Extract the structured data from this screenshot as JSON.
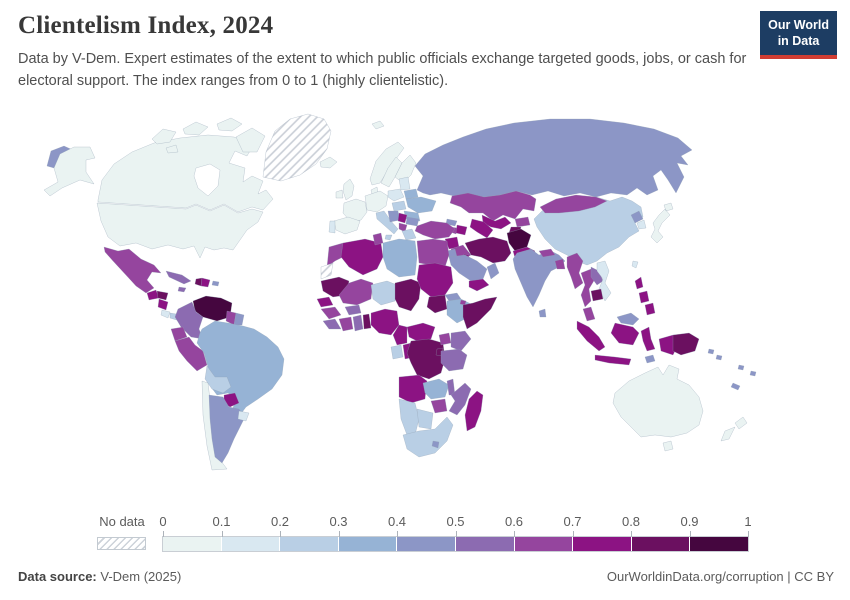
{
  "header": {
    "title": "Clientelism Index, 2024",
    "subtitle": "Data by V-Dem. Expert estimates of the extent to which public officials exchange targeted goods, jobs, or cash for electoral support. The index ranges from 0 to 1 (highly clientelistic).",
    "logo_line1": "Our World",
    "logo_line2": "in Data",
    "logo_colors": {
      "background": "#1d3d63",
      "underline": "#d13d33"
    }
  },
  "legend": {
    "no_data_label": "No data",
    "ticks": [
      "0",
      "0.1",
      "0.2",
      "0.3",
      "0.4",
      "0.5",
      "0.6",
      "0.7",
      "0.8",
      "0.9",
      "1"
    ],
    "bins": [
      {
        "range": "0–0.1",
        "color": "#eaf3f2"
      },
      {
        "range": "0.1–0.2",
        "color": "#d9e8f1"
      },
      {
        "range": "0.2–0.3",
        "color": "#b9cfe5"
      },
      {
        "range": "0.3–0.4",
        "color": "#96b3d5"
      },
      {
        "range": "0.4–0.5",
        "color": "#8c96c6"
      },
      {
        "range": "0.5–0.6",
        "color": "#8c6bb1"
      },
      {
        "range": "0.6–0.7",
        "color": "#95459e"
      },
      {
        "range": "0.7–0.8",
        "color": "#8c1383"
      },
      {
        "range": "0.8–0.9",
        "color": "#6b1060"
      },
      {
        "range": "0.9–1",
        "color": "#45063f"
      }
    ]
  },
  "footer": {
    "source_label": "Data source:",
    "source_value": " V-Dem (2025)",
    "right_text": "OurWorldinData.org/corruption | CC BY"
  },
  "chart_data": {
    "type": "choropleth_map",
    "title": "Clientelism Index, 2024",
    "scale": {
      "min": 0,
      "max": 1,
      "step": 0.1,
      "palette": "blue-purple sequential",
      "no_data": "hatched"
    },
    "regions": {
      "usa": {
        "name": "United States",
        "value": "0–0.1",
        "color": "#eaf3f2"
      },
      "alaska": {
        "name": "Alaska (United States)",
        "value": "0–0.1",
        "color": "#eaf3f2"
      },
      "canada": {
        "name": "Canada",
        "value": "0–0.1",
        "color": "#eaf3f2"
      },
      "arctic": {
        "name": "Canadian Arctic islands",
        "value": "0–0.1",
        "color": "#eaf3f2"
      },
      "greenland": {
        "name": "Greenland",
        "value": "No data",
        "color": "hatch"
      },
      "chukotka": {
        "name": "Russia (far east)",
        "value": "0.4–0.5",
        "color": "#8c96c6"
      },
      "mexico": {
        "name": "Mexico",
        "value": "0.6–0.7",
        "color": "#95459e"
      },
      "guatemala": {
        "name": "Guatemala",
        "value": "0.7–0.8",
        "color": "#8c1383"
      },
      "honduras": {
        "name": "Honduras",
        "value": "0.8–0.9",
        "color": "#6b1060"
      },
      "nicaragua": {
        "name": "Nicaragua",
        "value": "0.7–0.8",
        "color": "#8c1383"
      },
      "costarica": {
        "name": "Costa Rica",
        "value": "0.1–0.2",
        "color": "#d9e8f1"
      },
      "panama": {
        "name": "Panama",
        "value": "0.2–0.3",
        "color": "#b9cfe5"
      },
      "cuba": {
        "name": "Cuba",
        "value": "0.5–0.6",
        "color": "#8c6bb1"
      },
      "jamaica": {
        "name": "Jamaica",
        "value": "0.5–0.6",
        "color": "#8c6bb1"
      },
      "haiti": {
        "name": "Haiti",
        "value": "0.8–0.9",
        "color": "#6b1060"
      },
      "domrep": {
        "name": "Dominican Republic",
        "value": "0.7–0.8",
        "color": "#8c1383"
      },
      "puertorico": {
        "name": "Puerto Rico",
        "value": "0.4–0.5",
        "color": "#8c96c6"
      },
      "venezuela": {
        "name": "Venezuela",
        "value": "0.9–1",
        "color": "#45063f"
      },
      "colombia": {
        "name": "Colombia",
        "value": "0.5–0.6",
        "color": "#8c6bb1"
      },
      "guyana": {
        "name": "Guyana",
        "value": "0.6–0.7",
        "color": "#95459e"
      },
      "suriname": {
        "name": "Suriname",
        "value": "0.4–0.5",
        "color": "#8c96c6"
      },
      "ecuador": {
        "name": "Ecuador",
        "value": "0.6–0.7",
        "color": "#95459e"
      },
      "peru": {
        "name": "Peru",
        "value": "0.6–0.7",
        "color": "#95459e"
      },
      "brazil": {
        "name": "Brazil",
        "value": "0.3–0.4",
        "color": "#96b3d5"
      },
      "bolivia": {
        "name": "Bolivia",
        "value": "0.2–0.3",
        "color": "#b9cfe5"
      },
      "paraguay": {
        "name": "Paraguay",
        "value": "0.7–0.8",
        "color": "#8c1383"
      },
      "chile": {
        "name": "Chile",
        "value": "0–0.1",
        "color": "#eaf3f2"
      },
      "argentina": {
        "name": "Argentina",
        "value": "0.4–0.5",
        "color": "#8c96c6"
      },
      "uruguay": {
        "name": "Uruguay",
        "value": "0.1–0.2",
        "color": "#d9e8f1"
      },
      "iceland": {
        "name": "Iceland",
        "value": "0–0.1",
        "color": "#eaf3f2"
      },
      "uk": {
        "name": "United Kingdom",
        "value": "0–0.1",
        "color": "#eaf3f2"
      },
      "ireland": {
        "name": "Ireland",
        "value": "0–0.1",
        "color": "#eaf3f2"
      },
      "norway": {
        "name": "Norway",
        "value": "0–0.1",
        "color": "#eaf3f2"
      },
      "sweden": {
        "name": "Sweden",
        "value": "0–0.1",
        "color": "#eaf3f2"
      },
      "finland": {
        "name": "Finland",
        "value": "0–0.1",
        "color": "#eaf3f2"
      },
      "denmark": {
        "name": "Denmark",
        "value": "0–0.1",
        "color": "#eaf3f2"
      },
      "germany": {
        "name": "Germany / Central Europe",
        "value": "0–0.1",
        "color": "#eaf3f2"
      },
      "france": {
        "name": "France",
        "value": "0–0.1",
        "color": "#eaf3f2"
      },
      "spain": {
        "name": "Spain",
        "value": "0–0.1",
        "color": "#eaf3f2"
      },
      "portugal": {
        "name": "Portugal",
        "value": "0.1–0.2",
        "color": "#d9e8f1"
      },
      "italy": {
        "name": "Italy",
        "value": "0.2–0.3",
        "color": "#b9cfe5"
      },
      "poland": {
        "name": "Poland",
        "value": "0.1–0.2",
        "color": "#d9e8f1"
      },
      "baltics": {
        "name": "Baltic states",
        "value": "0.1–0.2",
        "color": "#d9e8f1"
      },
      "belarus": {
        "name": "Belarus",
        "value": "0.3–0.4",
        "color": "#96b3d5"
      },
      "ukraine": {
        "name": "Ukraine",
        "value": "0.3–0.4",
        "color": "#96b3d5"
      },
      "hungary": {
        "name": "Hungary / Slovakia",
        "value": "0.2–0.3",
        "color": "#b9cfe5"
      },
      "romania": {
        "name": "Romania",
        "value": "0.3–0.4",
        "color": "#96b3d5"
      },
      "westbalkans": {
        "name": "Croatia / Bosnia",
        "value": "0.4–0.5",
        "color": "#8c96c6"
      },
      "serbia": {
        "name": "Serbia",
        "value": "0.7–0.8",
        "color": "#8c1383"
      },
      "bulgaria": {
        "name": "Bulgaria",
        "value": "0.4–0.5",
        "color": "#8c96c6"
      },
      "albmac": {
        "name": "Albania / North Macedonia",
        "value": "0.6–0.7",
        "color": "#95459e"
      },
      "greece": {
        "name": "Greece",
        "value": "0.2–0.3",
        "color": "#b9cfe5"
      },
      "svalbard": {
        "name": "Svalbard",
        "value": "0–0.1",
        "color": "#eaf3f2"
      },
      "russia": {
        "name": "Russia",
        "value": "0.4–0.5",
        "color": "#8c96c6"
      },
      "kazakhstan": {
        "name": "Kazakhstan",
        "value": "0.6–0.7",
        "color": "#95459e"
      },
      "uzbekistan": {
        "name": "Uzbekistan",
        "value": "0.7–0.8",
        "color": "#8c1383"
      },
      "turkmenistan": {
        "name": "Turkmenistan",
        "value": "0.7–0.8",
        "color": "#8c1383"
      },
      "kyrgyzstan": {
        "name": "Kyrgyzstan",
        "value": "0.6–0.7",
        "color": "#95459e"
      },
      "tajikistan": {
        "name": "Tajikistan",
        "value": "0.8–0.9",
        "color": "#6b1060"
      },
      "georgia": {
        "name": "Georgia",
        "value": "0.4–0.5",
        "color": "#8c96c6"
      },
      "armenia": {
        "name": "Armenia",
        "value": "0.6–0.7",
        "color": "#95459e"
      },
      "azerbaijan": {
        "name": "Azerbaijan",
        "value": "0.7–0.8",
        "color": "#8c1383"
      },
      "turkey": {
        "name": "Turkey",
        "value": "0.6–0.7",
        "color": "#95459e"
      },
      "syria": {
        "name": "Syria",
        "value": "0.7–0.8",
        "color": "#8c1383"
      },
      "iraq": {
        "name": "Iraq",
        "value": "0.6–0.7",
        "color": "#95459e"
      },
      "iran": {
        "name": "Iran",
        "value": "0.8–0.9",
        "color": "#6b1060"
      },
      "afghanistan": {
        "name": "Afghanistan",
        "value": "0.9–1",
        "color": "#45063f"
      },
      "pakistan": {
        "name": "Pakistan",
        "value": "0.7–0.8",
        "color": "#8c1383"
      },
      "jordan": {
        "name": "Jordan",
        "value": "0.4–0.5",
        "color": "#8c96c6"
      },
      "israel": {
        "name": "Israel",
        "value": "0.1–0.2",
        "color": "#d9e8f1"
      },
      "saudi": {
        "name": "Saudi Arabia",
        "value": "0.4–0.5",
        "color": "#8c96c6"
      },
      "kuwait": {
        "name": "Kuwait",
        "value": "0.7–0.8",
        "color": "#8c1383"
      },
      "yemen": {
        "name": "Yemen",
        "value": "0.7–0.8",
        "color": "#8c1383"
      },
      "oman": {
        "name": "Oman",
        "value": "0.4–0.5",
        "color": "#8c96c6"
      },
      "morocco": {
        "name": "Morocco",
        "value": "0.6–0.7",
        "color": "#95459e"
      },
      "wsahara": {
        "name": "Western Sahara",
        "value": "No data",
        "color": "hatch"
      },
      "algeria": {
        "name": "Algeria",
        "value": "0.7–0.8",
        "color": "#8c1383"
      },
      "tunisia": {
        "name": "Tunisia",
        "value": "0.6–0.7",
        "color": "#95459e"
      },
      "libya": {
        "name": "Libya",
        "value": "0.3–0.4",
        "color": "#96b3d5"
      },
      "egypt": {
        "name": "Egypt",
        "value": "0.6–0.7",
        "color": "#95459e"
      },
      "mauritania": {
        "name": "Mauritania",
        "value": "0.8–0.9",
        "color": "#6b1060"
      },
      "mali": {
        "name": "Mali",
        "value": "0.6–0.7",
        "color": "#95459e"
      },
      "niger": {
        "name": "Niger",
        "value": "0.2–0.3",
        "color": "#b9cfe5"
      },
      "chad": {
        "name": "Chad",
        "value": "0.8–0.9",
        "color": "#6b1060"
      },
      "sudan": {
        "name": "Sudan",
        "value": "0.7–0.8",
        "color": "#8c1383"
      },
      "southsudan": {
        "name": "South Sudan",
        "value": "0.8–0.9",
        "color": "#6b1060"
      },
      "eritrea": {
        "name": "Eritrea",
        "value": "0.4–0.5",
        "color": "#8c96c6"
      },
      "ethiopia": {
        "name": "Ethiopia",
        "value": "0.3–0.4",
        "color": "#96b3d5"
      },
      "djibouti": {
        "name": "Djibouti",
        "value": "0.6–0.7",
        "color": "#95459e"
      },
      "somalia": {
        "name": "Somalia",
        "value": "0.8–0.9",
        "color": "#6b1060"
      },
      "senegal": {
        "name": "Senegal",
        "value": "0.7–0.8",
        "color": "#8c1383"
      },
      "guinea": {
        "name": "Guinea",
        "value": "0.6–0.7",
        "color": "#95459e"
      },
      "sierraliberia": {
        "name": "Sierra Leone / Liberia",
        "value": "0.5–0.6",
        "color": "#8c6bb1"
      },
      "ivorycoast": {
        "name": "Côte d'Ivoire",
        "value": "0.6–0.7",
        "color": "#95459e"
      },
      "burkina": {
        "name": "Burkina Faso",
        "value": "0.5–0.6",
        "color": "#8c6bb1"
      },
      "ghana": {
        "name": "Ghana",
        "value": "0.5–0.6",
        "color": "#8c6bb1"
      },
      "togobenin": {
        "name": "Togo / Benin",
        "value": "0.8–0.9",
        "color": "#6b1060"
      },
      "nigeria": {
        "name": "Nigeria",
        "value": "0.7–0.8",
        "color": "#8c1383"
      },
      "cameroon": {
        "name": "Cameroon",
        "value": "0.7–0.8",
        "color": "#8c1383"
      },
      "car": {
        "name": "Central African Republic",
        "value": "0.7–0.8",
        "color": "#8c1383"
      },
      "gabon": {
        "name": "Gabon / Eq. Guinea",
        "value": "0.2–0.3",
        "color": "#b9cfe5"
      },
      "congo": {
        "name": "Congo",
        "value": "0.7–0.8",
        "color": "#8c1383"
      },
      "drc": {
        "name": "Democratic Republic of Congo",
        "value": "0.8–0.9",
        "color": "#6b1060"
      },
      "uganda": {
        "name": "Uganda",
        "value": "0.6–0.7",
        "color": "#95459e"
      },
      "kenya": {
        "name": "Kenya",
        "value": "0.5–0.6",
        "color": "#8c6bb1"
      },
      "rwandaburundi": {
        "name": "Rwanda / Burundi",
        "value": "0.8–0.9",
        "color": "#6b1060"
      },
      "tanzania": {
        "name": "Tanzania",
        "value": "0.5–0.6",
        "color": "#8c6bb1"
      },
      "angola": {
        "name": "Angola",
        "value": "0.7–0.8",
        "color": "#8c1383"
      },
      "zambia": {
        "name": "Zambia",
        "value": "0.3–0.4",
        "color": "#96b3d5"
      },
      "malawi": {
        "name": "Malawi",
        "value": "0.5–0.6",
        "color": "#8c6bb1"
      },
      "mozambique": {
        "name": "Mozambique",
        "value": "0.5–0.6",
        "color": "#8c6bb1"
      },
      "zimbabwe": {
        "name": "Zimbabwe",
        "value": "0.6–0.7",
        "color": "#95459e"
      },
      "namibia": {
        "name": "Namibia",
        "value": "0.2–0.3",
        "color": "#b9cfe5"
      },
      "botswana": {
        "name": "Botswana",
        "value": "0.2–0.3",
        "color": "#b9cfe5"
      },
      "southafrica": {
        "name": "South Africa",
        "value": "0.2–0.3",
        "color": "#b9cfe5"
      },
      "lesotho": {
        "name": "Lesotho",
        "value": "0.4–0.5",
        "color": "#8c96c6"
      },
      "madagascar": {
        "name": "Madagascar",
        "value": "0.7–0.8",
        "color": "#8c1383"
      },
      "china": {
        "name": "China",
        "value": "0.2–0.3",
        "color": "#b9cfe5"
      },
      "mongolia": {
        "name": "Mongolia",
        "value": "0.6–0.7",
        "color": "#95459e"
      },
      "nkorea": {
        "name": "North Korea",
        "value": "0.4–0.5",
        "color": "#8c96c6"
      },
      "skorea": {
        "name": "South Korea",
        "value": "0.1–0.2",
        "color": "#d9e8f1"
      },
      "japan": {
        "name": "Japan",
        "value": "0–0.1",
        "color": "#eaf3f2"
      },
      "taiwan": {
        "name": "Taiwan",
        "value": "0.1–0.2",
        "color": "#d9e8f1"
      },
      "india": {
        "name": "India",
        "value": "0.4–0.5",
        "color": "#8c96c6"
      },
      "nepal": {
        "name": "Nepal",
        "value": "0.6–0.7",
        "color": "#95459e"
      },
      "bangladesh": {
        "name": "Bangladesh",
        "value": "0.6–0.7",
        "color": "#95459e"
      },
      "srilanka": {
        "name": "Sri Lanka",
        "value": "0.4–0.5",
        "color": "#8c96c6"
      },
      "myanmar": {
        "name": "Myanmar",
        "value": "0.6–0.7",
        "color": "#95459e"
      },
      "thailand": {
        "name": "Thailand",
        "value": "0.6–0.7",
        "color": "#95459e"
      },
      "laos": {
        "name": "Laos",
        "value": "0.5–0.6",
        "color": "#8c6bb1"
      },
      "vietnam": {
        "name": "Vietnam",
        "value": "0.1–0.2",
        "color": "#d9e8f1"
      },
      "cambodia": {
        "name": "Cambodia",
        "value": "0.8–0.9",
        "color": "#6b1060"
      },
      "malaysiapen": {
        "name": "Malaysia (peninsular)",
        "value": "0.6–0.7",
        "color": "#95459e"
      },
      "borneomy": {
        "name": "Malaysia (Borneo)",
        "value": "0.4–0.5",
        "color": "#8c96c6"
      },
      "indonesia": {
        "name": "Indonesia",
        "value": "0.7–0.8",
        "color": "#8c1383"
      },
      "timor": {
        "name": "Timor-Leste",
        "value": "0.4–0.5",
        "color": "#8c96c6"
      },
      "philippines": {
        "name": "Philippines",
        "value": "0.7–0.8",
        "color": "#8c1383"
      },
      "png": {
        "name": "Papua New Guinea",
        "value": "0.8–0.9",
        "color": "#6b1060"
      },
      "solomon": {
        "name": "Solomon Islands",
        "value": "0.4–0.5",
        "color": "#8c96c6"
      },
      "vanuatufiji": {
        "name": "Vanuatu / Fiji",
        "value": "0.4–0.5",
        "color": "#8c96c6"
      },
      "newcaledonia": {
        "name": "New Caledonia",
        "value": "0.4–0.5",
        "color": "#8c96c6"
      },
      "australia": {
        "name": "Australia",
        "value": "0–0.1",
        "color": "#eaf3f2"
      },
      "newzealand": {
        "name": "New Zealand",
        "value": "0–0.1",
        "color": "#eaf3f2"
      }
    }
  }
}
